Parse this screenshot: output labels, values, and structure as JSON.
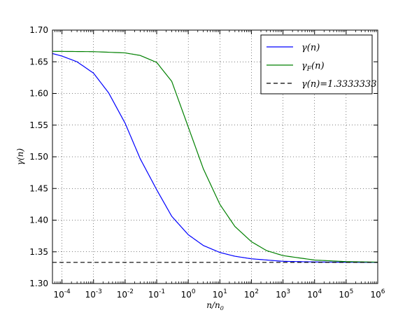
{
  "chart_data": {
    "type": "line",
    "title": "",
    "xlabel": "n/n0",
    "ylabel": "γ(n)",
    "xscale": "log",
    "xlim": [
      5e-05,
      1000000
    ],
    "ylim": [
      1.3,
      1.7
    ],
    "xticks": [
      0.0001,
      0.001,
      0.01,
      0.1,
      1,
      10,
      100,
      1000,
      10000,
      100000,
      1000000
    ],
    "xtick_labels": [
      {
        "base": "10",
        "exp": "-4"
      },
      {
        "base": "10",
        "exp": "-3"
      },
      {
        "base": "10",
        "exp": "-2"
      },
      {
        "base": "10",
        "exp": "-1"
      },
      {
        "base": "10",
        "exp": "0"
      },
      {
        "base": "10",
        "exp": "1"
      },
      {
        "base": "10",
        "exp": "2"
      },
      {
        "base": "10",
        "exp": "3"
      },
      {
        "base": "10",
        "exp": "4"
      },
      {
        "base": "10",
        "exp": "5"
      },
      {
        "base": "10",
        "exp": "6"
      }
    ],
    "yticks": [
      1.3,
      1.35,
      1.4,
      1.45,
      1.5,
      1.55,
      1.6,
      1.65,
      1.7
    ],
    "ytick_labels": [
      "1.30",
      "1.35",
      "1.40",
      "1.45",
      "1.50",
      "1.55",
      "1.60",
      "1.65",
      "1.70"
    ],
    "grid": true,
    "legend_position": "top-right",
    "series": [
      {
        "name": "γ(n)",
        "color": "#0000ff",
        "style": "solid",
        "x": [
          5e-05,
          0.0001,
          0.0003,
          0.001,
          0.003,
          0.01,
          0.03,
          0.1,
          0.3,
          1,
          3,
          10,
          30,
          100,
          1000,
          10000,
          100000,
          1000000
        ],
        "y": [
          1.663,
          1.659,
          1.65,
          1.632,
          1.601,
          1.553,
          1.497,
          1.448,
          1.406,
          1.377,
          1.36,
          1.349,
          1.343,
          1.339,
          1.335,
          1.334,
          1.3335,
          1.3334
        ]
      },
      {
        "name": "γF(n)",
        "color": "#008000",
        "style": "solid",
        "x": [
          5e-05,
          0.0001,
          0.001,
          0.01,
          0.03,
          0.1,
          0.3,
          1,
          3,
          10,
          30,
          100,
          300,
          1000,
          10000,
          100000,
          1000000
        ],
        "y": [
          1.6665,
          1.6664,
          1.666,
          1.664,
          1.66,
          1.649,
          1.619,
          1.547,
          1.481,
          1.425,
          1.39,
          1.366,
          1.352,
          1.344,
          1.337,
          1.3345,
          1.3337
        ]
      },
      {
        "name": "γ(n)=1.3333333",
        "color": "#000000",
        "style": "dashed",
        "x": [
          5e-05,
          1000000
        ],
        "y": [
          1.3333333,
          1.3333333
        ]
      }
    ]
  }
}
